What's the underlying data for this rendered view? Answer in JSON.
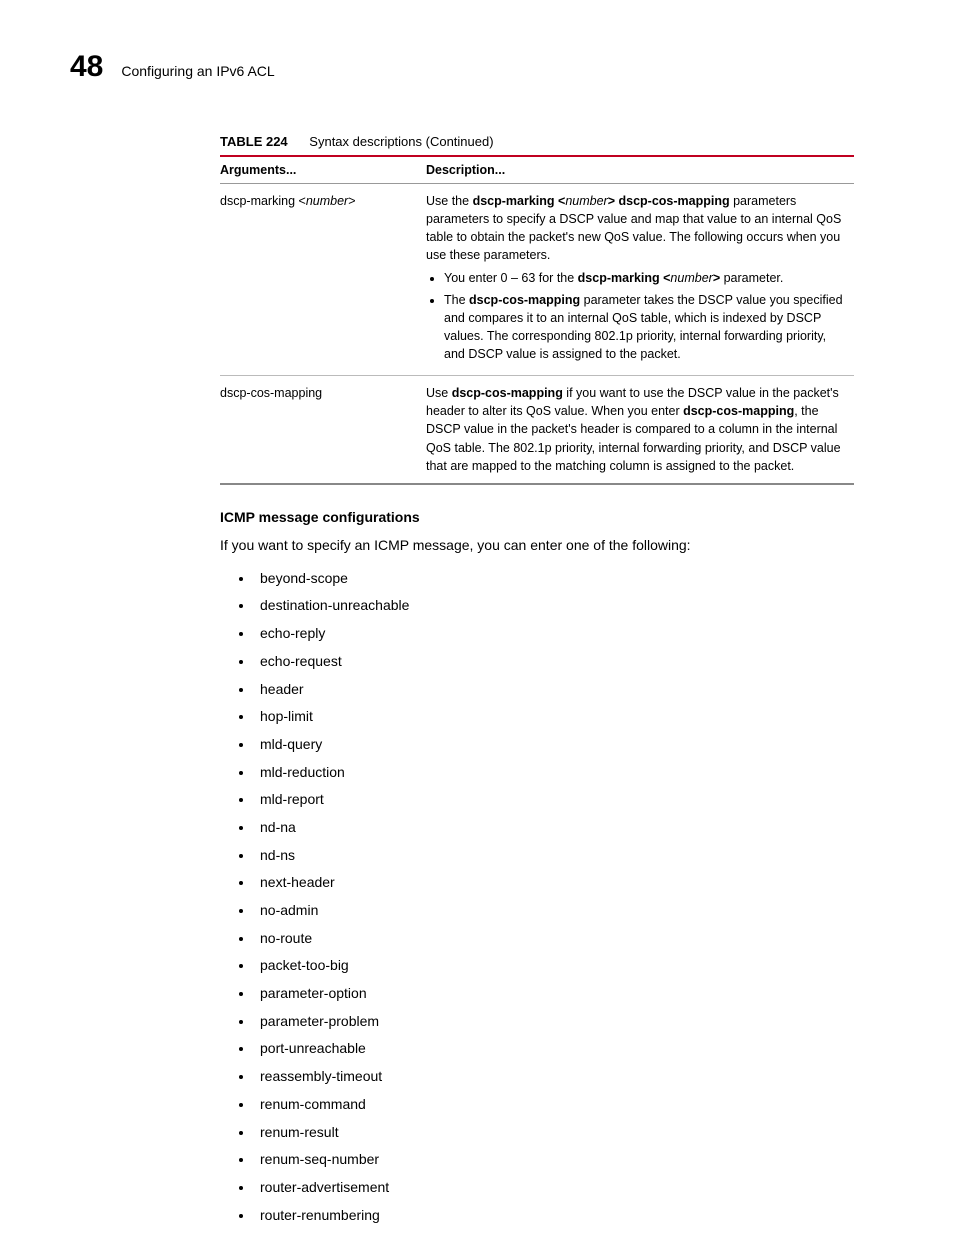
{
  "header": {
    "page_number": "48",
    "section": "Configuring an IPv6 ACL"
  },
  "table": {
    "label": "TABLE 224",
    "caption": "Syntax descriptions (Continued)",
    "columns": [
      "Arguments...",
      "Description..."
    ],
    "rows": {
      "r1": {
        "arg_pre": "dscp-marking <",
        "arg_italic": "number",
        "arg_post": ">",
        "d_pre": "Use the ",
        "d_b1": "dscp-marking <",
        "d_i1": "number",
        "d_b1b": "> dscp-cos-mapping",
        "d_rest1": " parameters parameters to specify a DSCP value and map that value to an internal QoS table to obtain the packet's new QoS value. The following occurs when you use these parameters.",
        "li1_pre": "You enter 0 – 63 for the ",
        "li1_b": "dscp-marking <",
        "li1_i": "number",
        "li1_bpost": ">",
        "li1_post": " parameter.",
        "li2_pre": "The ",
        "li2_b": "dscp-cos-mapping",
        "li2_post": " parameter takes the DSCP value you specified and compares it to an internal QoS table, which is indexed by DSCP values. The corresponding 802.1p priority, internal forwarding priority, and DSCP value is assigned to the packet."
      },
      "r2": {
        "arg": "dscp-cos-mapping",
        "d_pre": "Use ",
        "d_b1": "dscp-cos-mapping",
        "d_mid": " if you want to use the DSCP value in the packet's header to alter its QoS value. When you enter ",
        "d_b2": "dscp-cos-mapping",
        "d_post": ", the DSCP value in the packet's header is compared to a column in the internal QoS table. The 802.1p priority, internal forwarding priority, and DSCP value that are mapped to the matching column is assigned to the packet."
      }
    }
  },
  "body": {
    "subhead": "ICMP message configurations",
    "intro": "If you want to specify an ICMP message, you can enter one of the following:",
    "items": [
      "beyond-scope",
      "destination-unreachable",
      "echo-reply",
      "echo-request",
      "header",
      "hop-limit",
      "mld-query",
      "mld-reduction",
      "mld-report",
      "nd-na",
      "nd-ns",
      "next-header",
      "no-admin",
      "no-route",
      "packet-too-big",
      "parameter-option",
      "parameter-problem",
      "port-unreachable",
      "reassembly-timeout",
      "renum-command",
      "renum-result",
      "renum-seq-number",
      "router-advertisement",
      "router-renumbering"
    ]
  }
}
